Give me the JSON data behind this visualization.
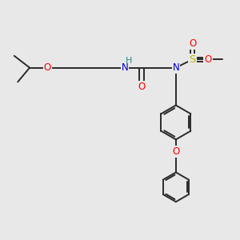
{
  "bg_color": "#e8e8e8",
  "bond_color": "#2a2a2a",
  "bond_width": 1.4,
  "atom_colors": {
    "O": "#ff0000",
    "N": "#0000cc",
    "H": "#2a8a8a",
    "S": "#b8b800",
    "C": "#2a2a2a"
  },
  "font_size": 8.5,
  "fig_width": 3.0,
  "fig_height": 3.0,
  "dpi": 100,
  "xlim": [
    0,
    10
  ],
  "ylim": [
    0,
    10
  ]
}
